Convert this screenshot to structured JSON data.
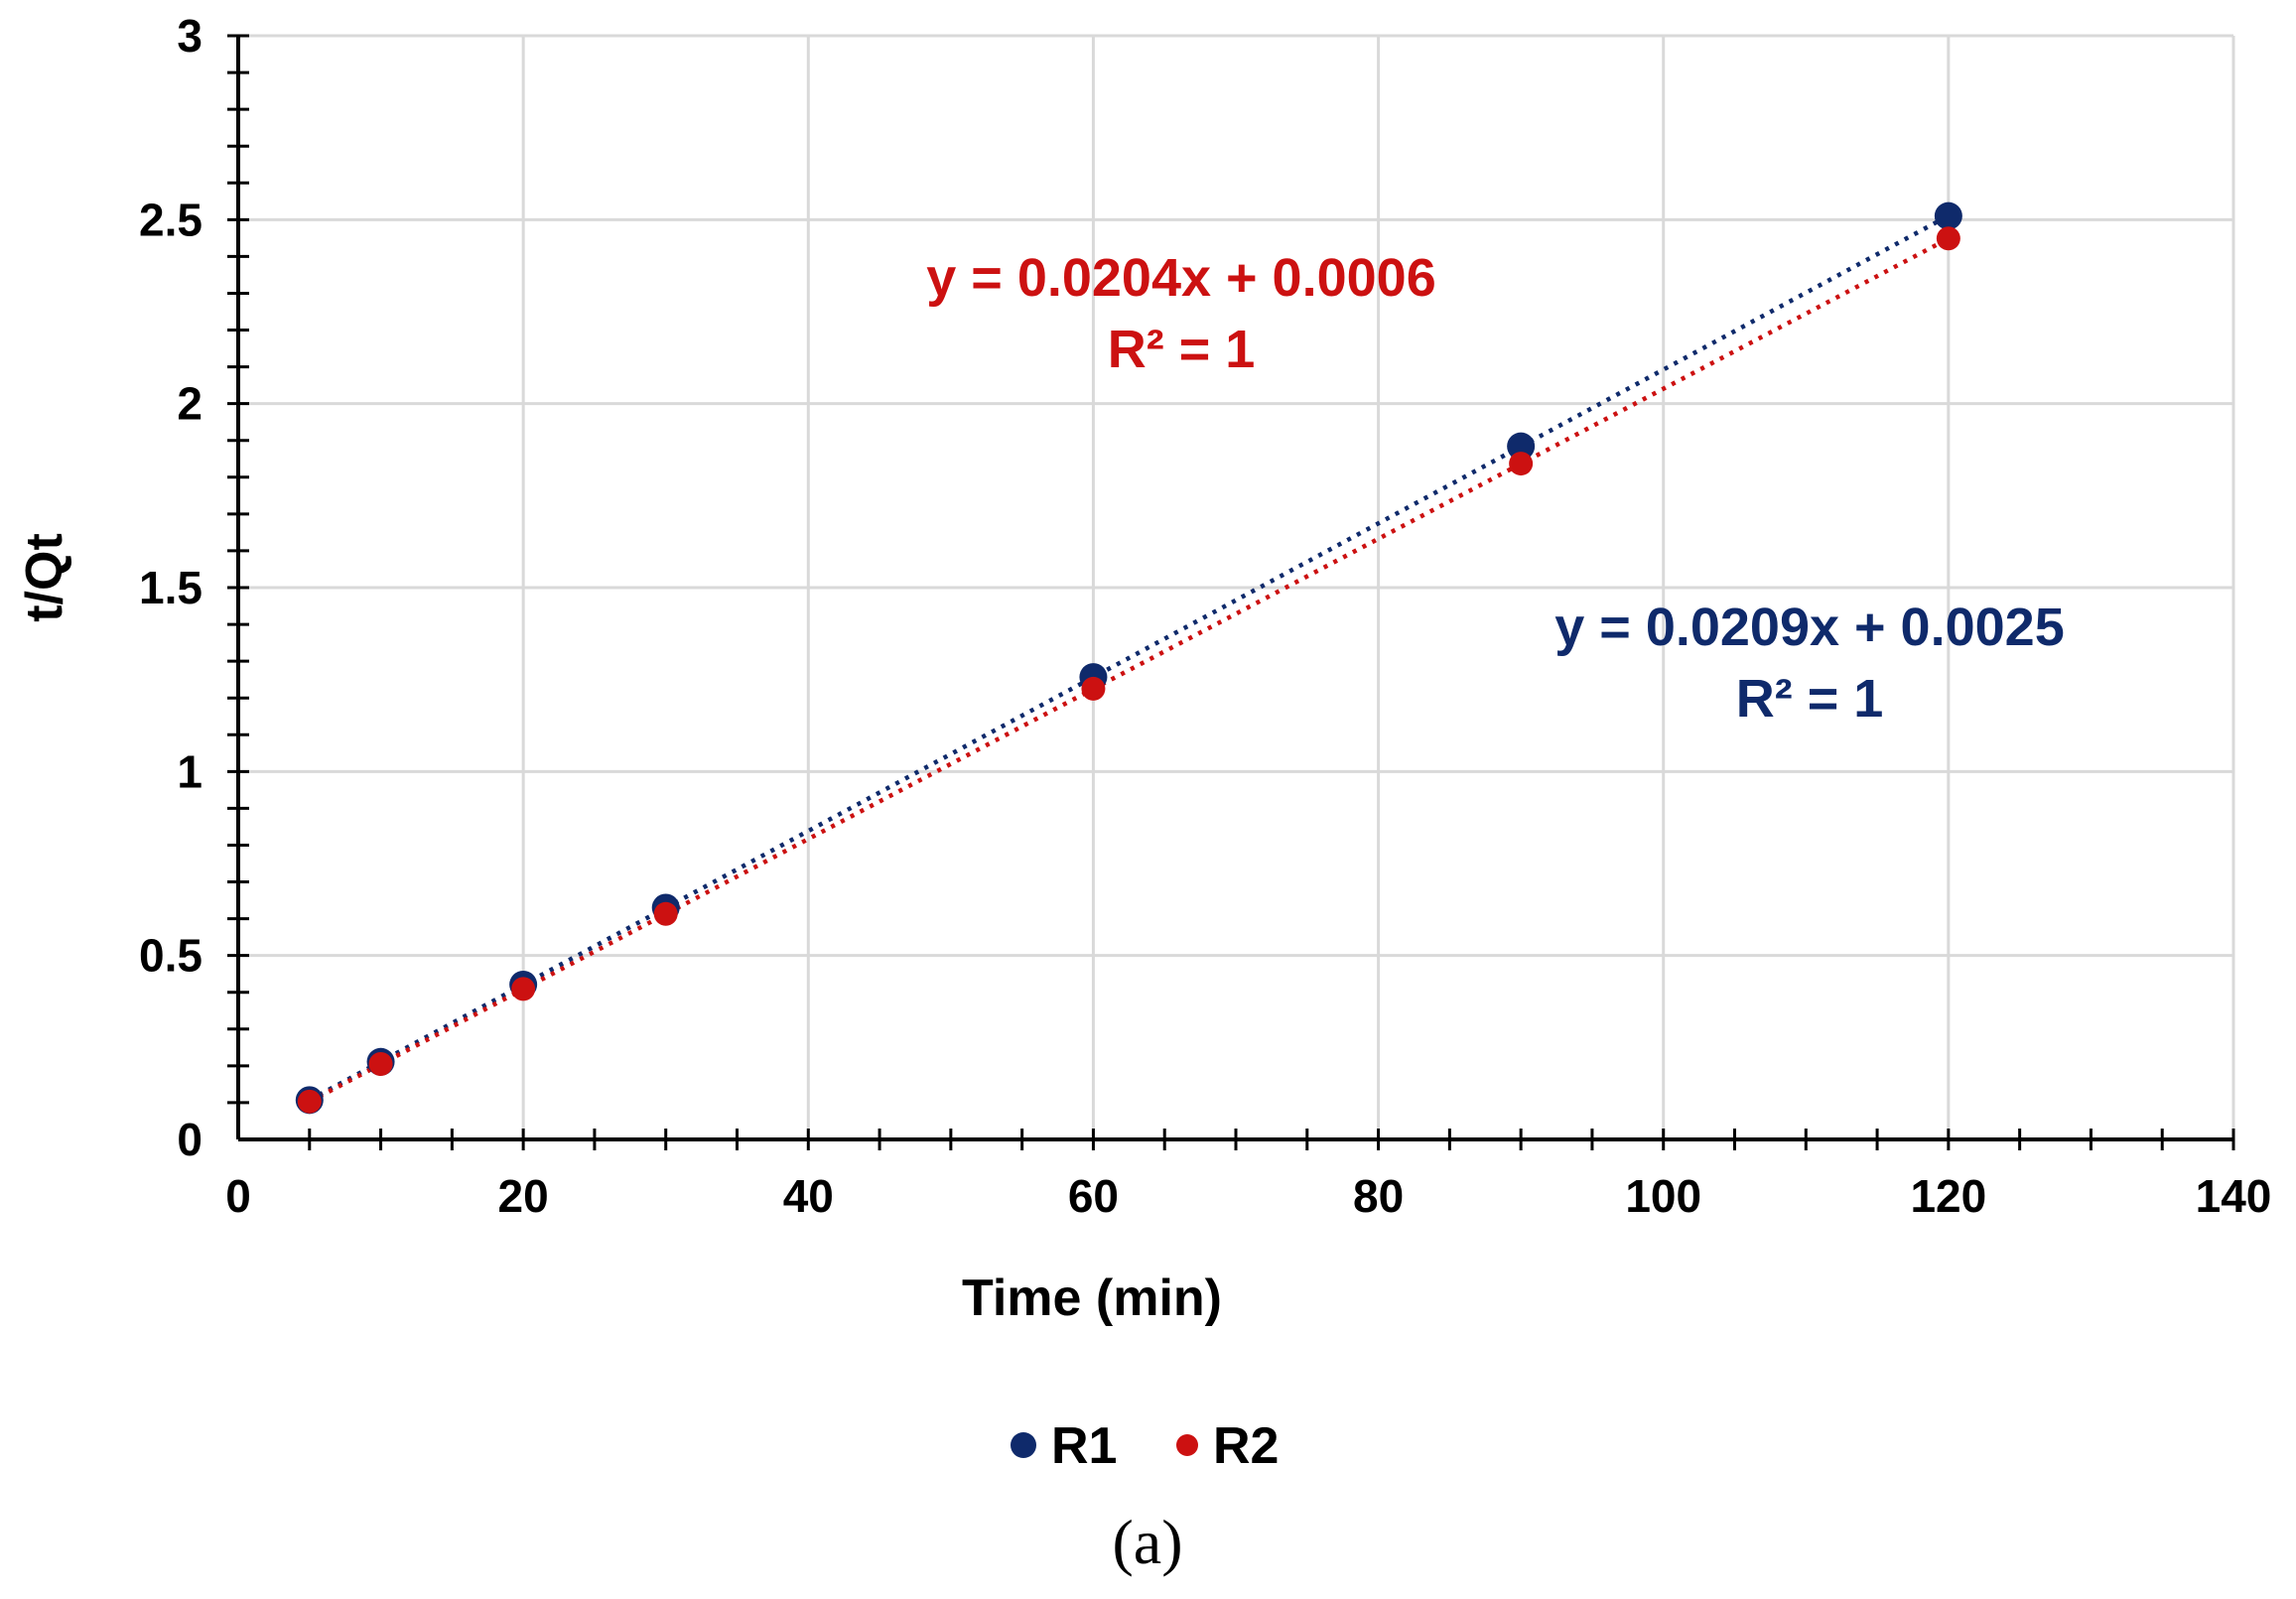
{
  "chart_data": {
    "type": "scatter",
    "title": "",
    "xlabel": "Time (min)",
    "ylabel": "t/Qt",
    "xlim": [
      0,
      140
    ],
    "ylim": [
      0,
      3
    ],
    "x_ticks": [
      0,
      20,
      40,
      60,
      80,
      100,
      120,
      140
    ],
    "y_ticks": [
      0,
      0.5,
      1,
      1.5,
      2,
      2.5,
      3
    ],
    "x_tick_labels": [
      "0",
      "20",
      "40",
      "60",
      "80",
      "100",
      "120",
      "140"
    ],
    "y_tick_labels": [
      "0",
      "0.5",
      "1",
      "1.5",
      "2",
      "2.5",
      "3"
    ],
    "grid": true,
    "legend_position": "bottom-center",
    "series": [
      {
        "name": "R1",
        "color": "#0f2a6b",
        "x": [
          5,
          10,
          20,
          30,
          60,
          90,
          120
        ],
        "y": [
          0.107,
          0.211,
          0.421,
          0.63,
          1.257,
          1.884,
          2.51
        ],
        "trendline": {
          "slope": 0.0209,
          "intercept": 0.0025,
          "equation": "y = 0.0209x + 0.0025",
          "r2": "R² = 1"
        }
      },
      {
        "name": "R2",
        "color": "#cc1111",
        "x": [
          5,
          10,
          20,
          30,
          60,
          90,
          120
        ],
        "y": [
          0.103,
          0.205,
          0.409,
          0.613,
          1.225,
          1.837,
          2.449
        ],
        "trendline": {
          "slope": 0.0204,
          "intercept": 0.0006,
          "equation": "y = 0.0204x + 0.0006",
          "r2": "R² = 1"
        }
      }
    ],
    "caption": "(a)"
  }
}
